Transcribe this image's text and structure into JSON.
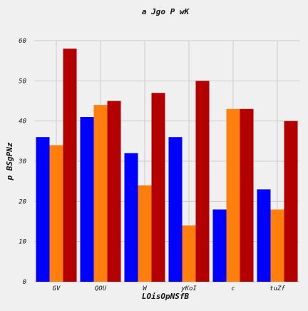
{
  "chart_data": {
    "type": "bar",
    "title": "a Jgo P  wK",
    "xlabel": "LOisOpNSfB",
    "ylabel": "p BSgPNz",
    "categories": [
      "GV",
      "QOU",
      "W",
      "yKoI",
      "c",
      "tuZf"
    ],
    "series": [
      {
        "color": "#0000ff",
        "values": [
          36,
          41,
          32,
          36,
          18,
          23
        ]
      },
      {
        "color": "#ff7f0e",
        "values": [
          34,
          44,
          24,
          14,
          43,
          18
        ]
      },
      {
        "color": "#b30000",
        "values": [
          58,
          45,
          47,
          50,
          43,
          40
        ]
      }
    ],
    "ylim": [
      0,
      60
    ],
    "yticks": [
      0,
      10,
      20,
      30,
      40,
      50,
      60
    ],
    "grid": true,
    "legend": "none"
  }
}
